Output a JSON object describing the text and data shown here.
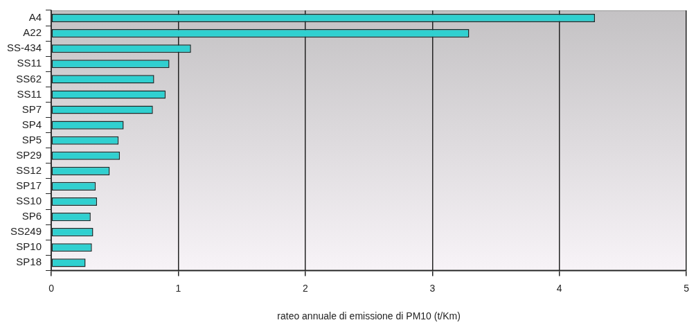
{
  "chart_data": {
    "type": "bar",
    "orientation": "horizontal",
    "xlabel": "rateo annuale di emissione di PM10 (t/Km)",
    "categories": [
      "A4",
      "A22",
      "SS-434",
      "SS11",
      "SS62",
      "SS11",
      "SP7",
      "SP4",
      "SP5",
      "SP29",
      "SS12",
      "SP17",
      "SS10",
      "SP6",
      "SS249",
      "SP10",
      "SP18"
    ],
    "values": [
      4.28,
      3.29,
      1.1,
      0.93,
      0.81,
      0.9,
      0.8,
      0.57,
      0.53,
      0.54,
      0.46,
      0.35,
      0.36,
      0.31,
      0.33,
      0.32,
      0.27
    ],
    "color": "#30d0d0",
    "xlim": [
      0,
      5
    ],
    "xticks": [
      0,
      1,
      2,
      3,
      4,
      5
    ],
    "grid": "x",
    "legend": false
  }
}
